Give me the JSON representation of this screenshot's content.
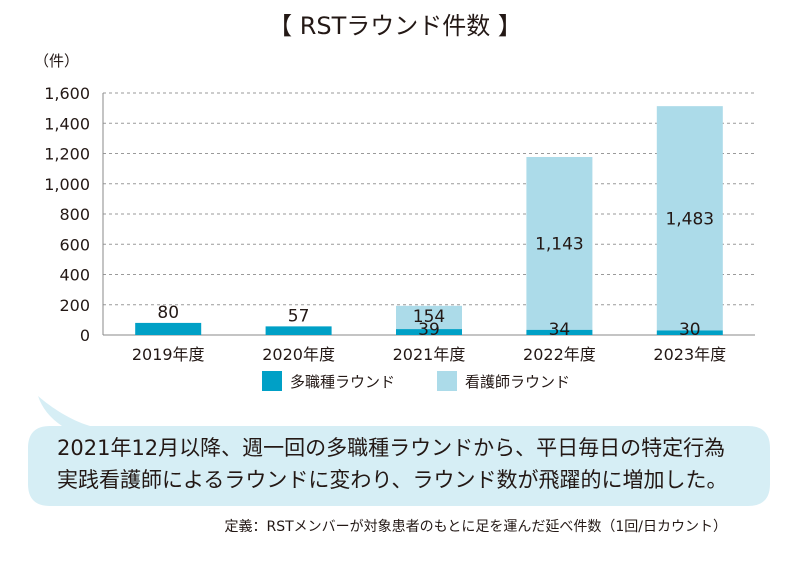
{
  "chart_data": {
    "type": "bar",
    "stacked": true,
    "title": "【 RSTラウンド件数 】",
    "unit_label": "（件）",
    "categories": [
      "2019年度",
      "2020年度",
      "2021年度",
      "2022年度",
      "2023年度"
    ],
    "series": [
      {
        "name": "多職種ラウンド",
        "color": "#00a0c6",
        "values": [
          80,
          57,
          39,
          34,
          30
        ]
      },
      {
        "name": "看護師ラウンド",
        "color": "#acdbe9",
        "values": [
          0,
          0,
          154,
          1143,
          1483
        ]
      }
    ],
    "data_labels": [
      "80",
      "57",
      "154",
      "39",
      "1,143",
      "34",
      "1,483",
      "30"
    ],
    "y_ticks": [
      "0",
      "200",
      "400",
      "600",
      "800",
      "1,000",
      "1,200",
      "1,400",
      "1,600"
    ],
    "ylim": [
      0,
      1600
    ],
    "grid": "dashed-horizontal",
    "legend_position": "bottom"
  },
  "callout": {
    "lines": [
      "2021年12月以降、週一回の多職種ラウンドから、平日毎日の特定行為",
      "実践看護師によるラウンドに変わり、ラウンド数が飛躍的に増加した。"
    ],
    "color": "#d6eef5"
  },
  "footnote": "定義：RSTメンバーが対象患者のもとに足を運んだ延べ件数（1回/日カウント）"
}
